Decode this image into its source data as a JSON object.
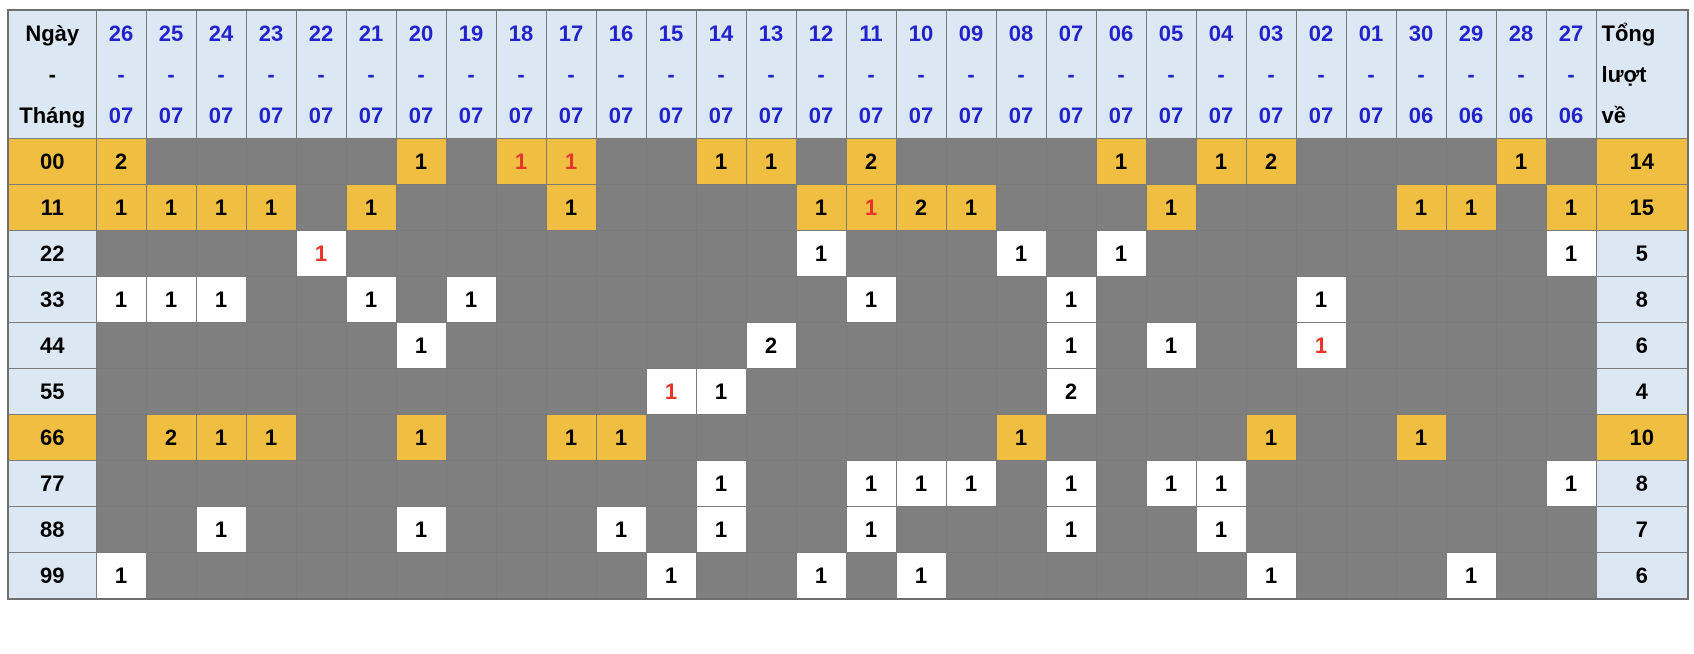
{
  "table": {
    "corner_lines": [
      "Ngày",
      "-",
      "Tháng"
    ],
    "total_header_lines": [
      "Tổng",
      "lượt",
      "về"
    ],
    "date_separator": "-",
    "date_columns": [
      {
        "day": "26",
        "month": "07"
      },
      {
        "day": "25",
        "month": "07"
      },
      {
        "day": "24",
        "month": "07"
      },
      {
        "day": "23",
        "month": "07"
      },
      {
        "day": "22",
        "month": "07"
      },
      {
        "day": "21",
        "month": "07"
      },
      {
        "day": "20",
        "month": "07"
      },
      {
        "day": "19",
        "month": "07"
      },
      {
        "day": "18",
        "month": "07"
      },
      {
        "day": "17",
        "month": "07"
      },
      {
        "day": "16",
        "month": "07"
      },
      {
        "day": "15",
        "month": "07"
      },
      {
        "day": "14",
        "month": "07"
      },
      {
        "day": "13",
        "month": "07"
      },
      {
        "day": "12",
        "month": "07"
      },
      {
        "day": "11",
        "month": "07"
      },
      {
        "day": "10",
        "month": "07"
      },
      {
        "day": "09",
        "month": "07"
      },
      {
        "day": "08",
        "month": "07"
      },
      {
        "day": "07",
        "month": "07"
      },
      {
        "day": "06",
        "month": "07"
      },
      {
        "day": "05",
        "month": "07"
      },
      {
        "day": "04",
        "month": "07"
      },
      {
        "day": "03",
        "month": "07"
      },
      {
        "day": "02",
        "month": "07"
      },
      {
        "day": "01",
        "month": "07"
      },
      {
        "day": "30",
        "month": "06"
      },
      {
        "day": "29",
        "month": "06"
      },
      {
        "day": "28",
        "month": "06"
      },
      {
        "day": "27",
        "month": "06"
      }
    ],
    "rows": [
      {
        "label": "00",
        "highlight": true,
        "total": "14",
        "cells": {
          "0": "2",
          "6": "1",
          "8": "1",
          "9": "1",
          "12": "1",
          "13": "1",
          "15": "2",
          "20": "1",
          "22": "1",
          "23": "2",
          "28": "1"
        },
        "red_cells": [
          8,
          9
        ]
      },
      {
        "label": "11",
        "highlight": true,
        "total": "15",
        "cells": {
          "0": "1",
          "1": "1",
          "2": "1",
          "3": "1",
          "5": "1",
          "9": "1",
          "14": "1",
          "15": "1",
          "16": "2",
          "17": "1",
          "21": "1",
          "26": "1",
          "27": "1",
          "29": "1"
        },
        "red_cells": [
          15
        ]
      },
      {
        "label": "22",
        "highlight": false,
        "total": "5",
        "cells": {
          "4": "1",
          "14": "1",
          "18": "1",
          "20": "1",
          "29": "1"
        },
        "red_cells": [
          4
        ]
      },
      {
        "label": "33",
        "highlight": false,
        "total": "8",
        "cells": {
          "0": "1",
          "1": "1",
          "2": "1",
          "5": "1",
          "7": "1",
          "15": "1",
          "19": "1",
          "24": "1"
        },
        "red_cells": []
      },
      {
        "label": "44",
        "highlight": false,
        "total": "6",
        "cells": {
          "6": "1",
          "13": "2",
          "19": "1",
          "21": "1",
          "24": "1"
        },
        "red_cells": [
          24
        ]
      },
      {
        "label": "55",
        "highlight": false,
        "total": "4",
        "cells": {
          "11": "1",
          "12": "1",
          "19": "2"
        },
        "red_cells": [
          11
        ]
      },
      {
        "label": "66",
        "highlight": true,
        "total": "10",
        "cells": {
          "1": "2",
          "2": "1",
          "3": "1",
          "6": "1",
          "9": "1",
          "10": "1",
          "18": "1",
          "23": "1",
          "26": "1"
        },
        "red_cells": []
      },
      {
        "label": "77",
        "highlight": false,
        "total": "8",
        "cells": {
          "12": "1",
          "15": "1",
          "16": "1",
          "17": "1",
          "19": "1",
          "21": "1",
          "22": "1",
          "29": "1"
        },
        "red_cells": []
      },
      {
        "label": "88",
        "highlight": false,
        "total": "7",
        "cells": {
          "2": "1",
          "6": "1",
          "10": "1",
          "12": "1",
          "15": "1",
          "19": "1",
          "22": "1"
        },
        "red_cells": []
      },
      {
        "label": "99",
        "highlight": false,
        "total": "6",
        "cells": {
          "0": "1",
          "11": "1",
          "14": "1",
          "16": "1",
          "23": "1",
          "27": "1"
        },
        "red_cells": []
      }
    ]
  },
  "colors": {
    "header_bg": "#dbe8f4",
    "date_link_blue": "#2222cc",
    "highlight_orange": "#f0bf42",
    "empty_gray": "#7f7f7f",
    "filled_white": "#ffffff",
    "red_value": "#e8352c",
    "grid_border": "#7b7b7b"
  }
}
